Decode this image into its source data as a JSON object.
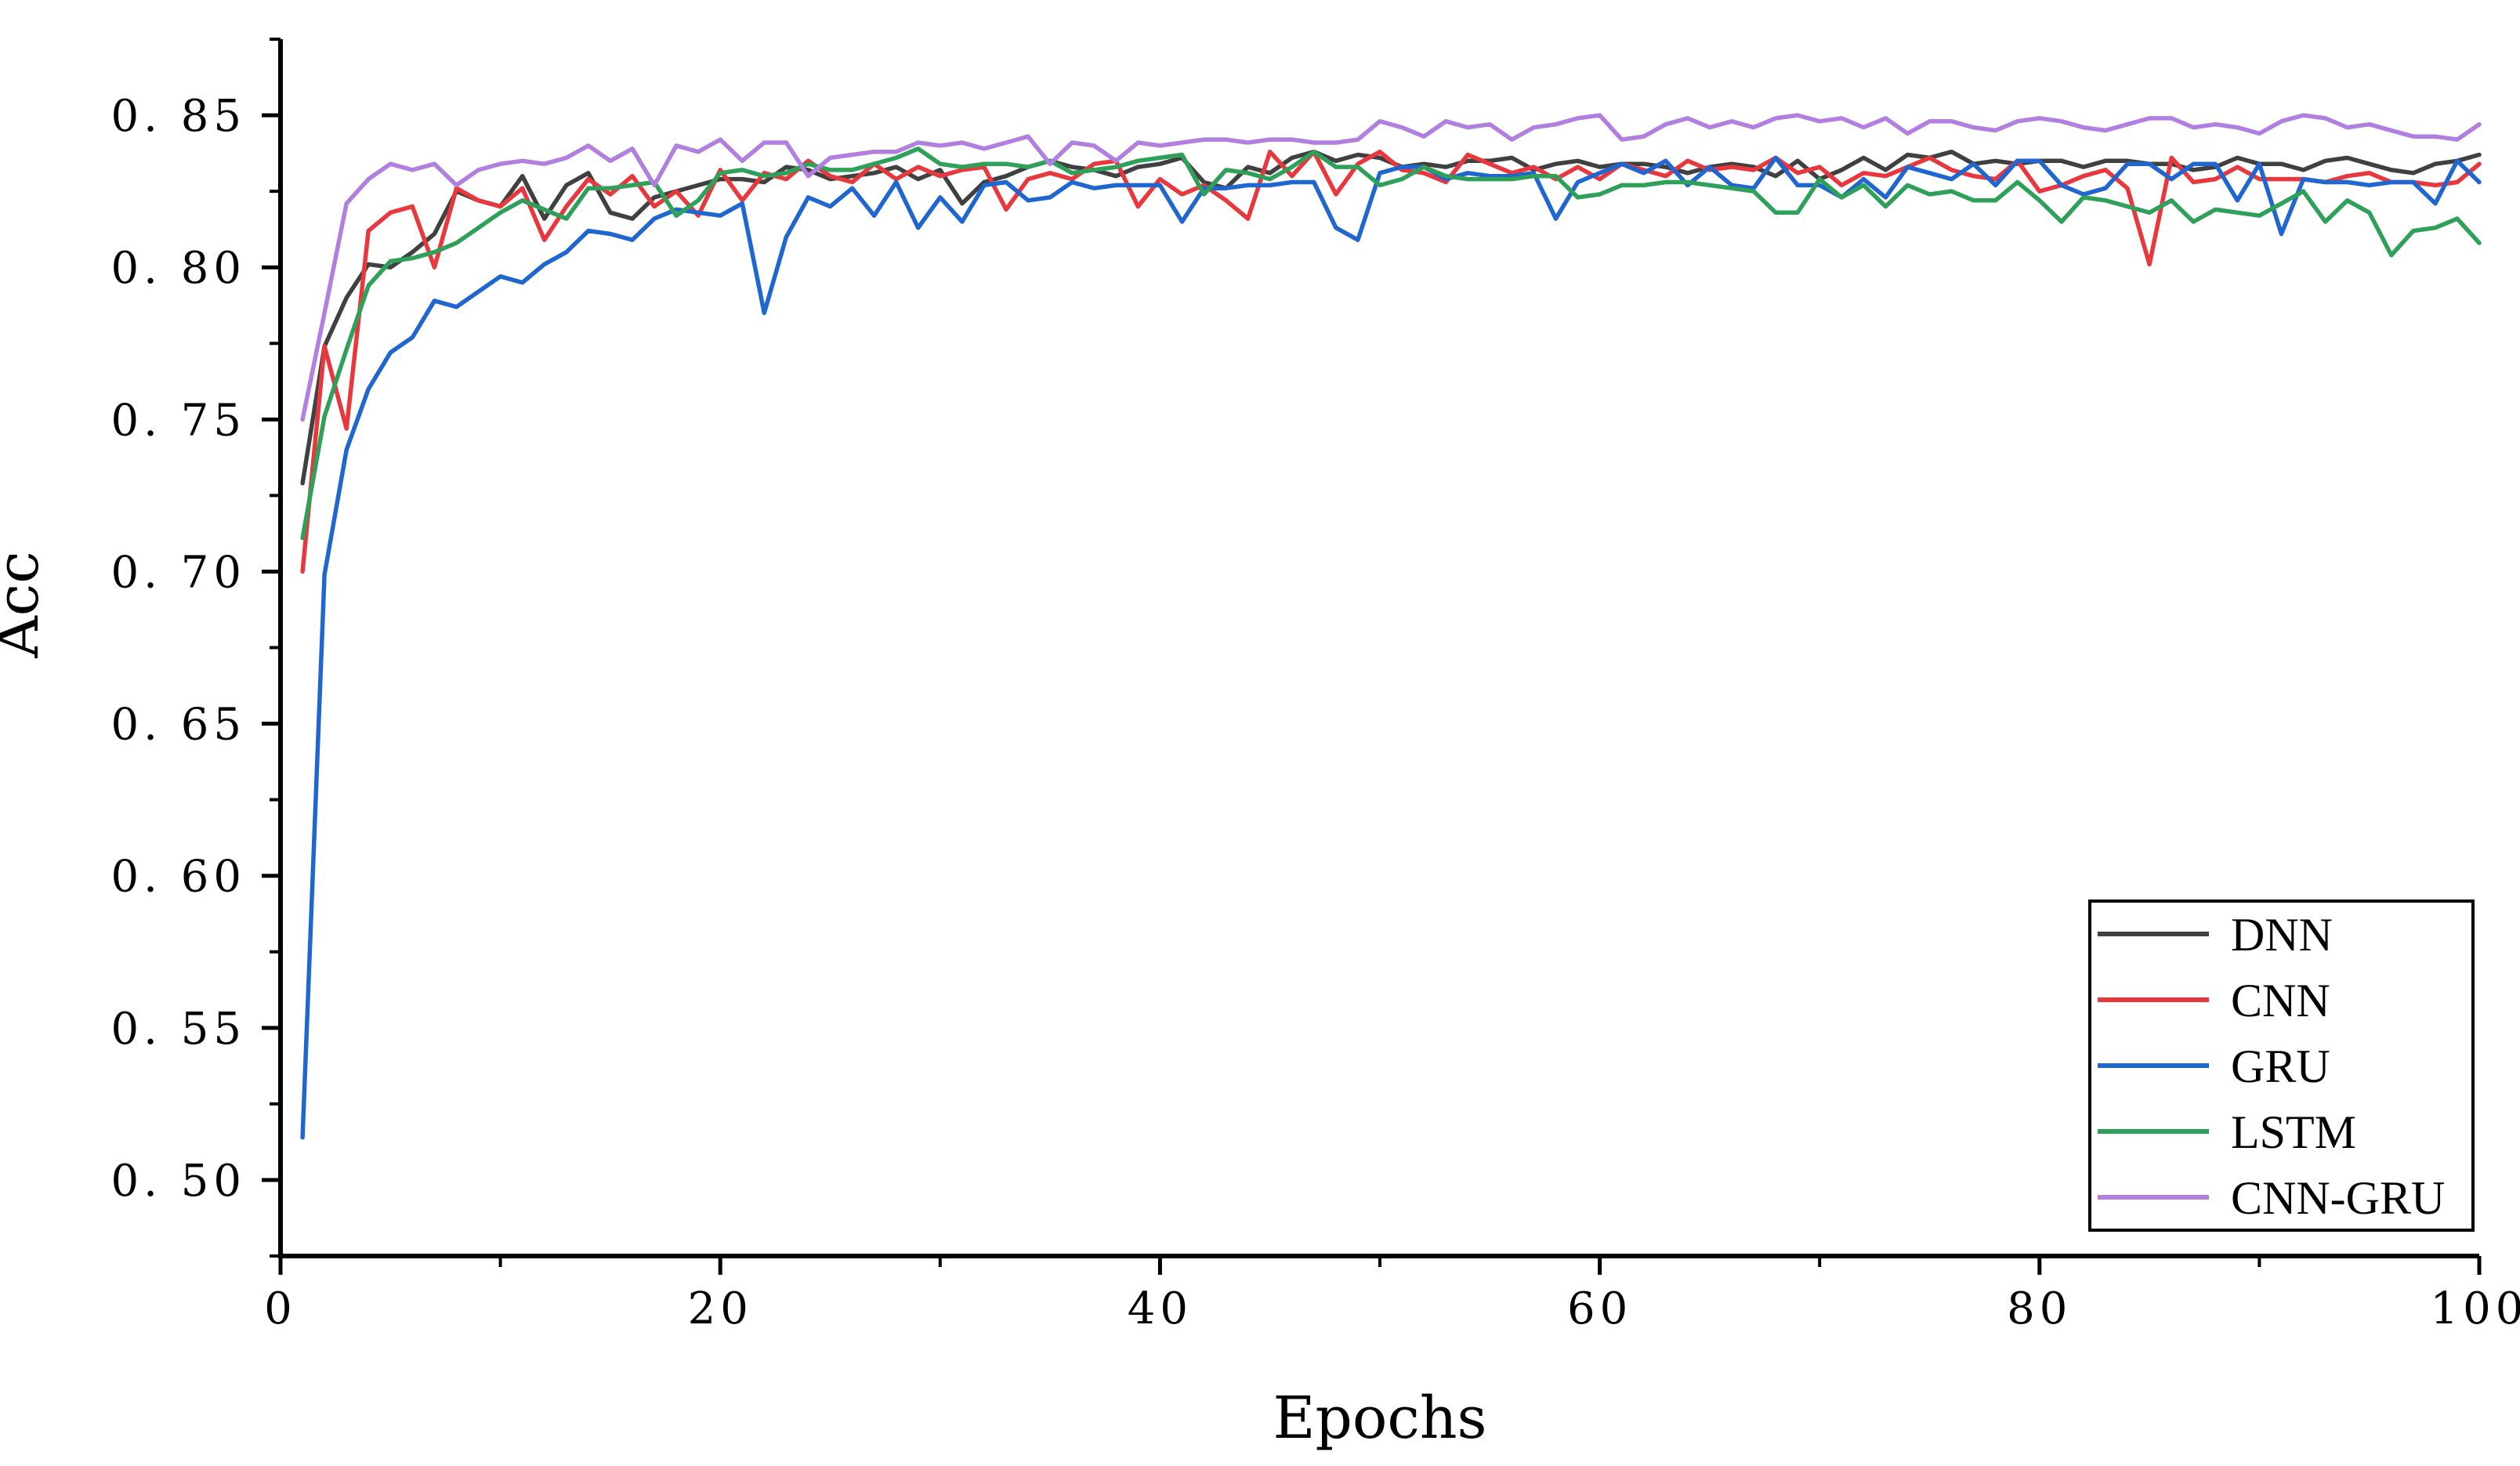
{
  "chart_data": {
    "type": "line",
    "xlabel": "Epochs",
    "ylabel": "Acc",
    "xlim": [
      0,
      100
    ],
    "ylim": [
      0.475,
      0.875
    ],
    "x_ticks": [
      "0",
      "20",
      "40",
      "60",
      "80",
      "100"
    ],
    "y_ticks": [
      "0. 50",
      "0. 55",
      "0. 60",
      "0. 65",
      "0. 70",
      "0. 75",
      "0. 80",
      "0. 85"
    ],
    "legend_position": "bottom-right",
    "x": [
      1,
      2,
      3,
      4,
      5,
      6,
      7,
      8,
      9,
      10,
      11,
      12,
      13,
      14,
      15,
      16,
      17,
      18,
      19,
      20,
      21,
      22,
      23,
      24,
      25,
      26,
      27,
      28,
      29,
      30,
      31,
      32,
      33,
      34,
      35,
      36,
      37,
      38,
      39,
      40,
      41,
      42,
      43,
      44,
      45,
      46,
      47,
      48,
      49,
      50,
      51,
      52,
      53,
      54,
      55,
      56,
      57,
      58,
      59,
      60,
      61,
      62,
      63,
      64,
      65,
      66,
      67,
      68,
      69,
      70,
      71,
      72,
      73,
      74,
      75,
      76,
      77,
      78,
      79,
      80,
      81,
      82,
      83,
      84,
      85,
      86,
      87,
      88,
      89,
      90,
      91,
      92,
      93,
      94,
      95,
      96,
      97,
      98,
      99,
      100
    ],
    "series": [
      {
        "name": "DNN",
        "color": "#404040",
        "values": [
          0.729,
          0.774,
          0.79,
          0.801,
          0.8,
          0.805,
          0.811,
          0.825,
          0.822,
          0.82,
          0.83,
          0.816,
          0.827,
          0.831,
          0.818,
          0.816,
          0.823,
          0.825,
          0.827,
          0.829,
          0.829,
          0.828,
          0.833,
          0.832,
          0.829,
          0.83,
          0.831,
          0.833,
          0.829,
          0.832,
          0.821,
          0.828,
          0.83,
          0.833,
          0.835,
          0.833,
          0.832,
          0.83,
          0.833,
          0.834,
          0.836,
          0.828,
          0.826,
          0.833,
          0.831,
          0.836,
          0.838,
          0.835,
          0.837,
          0.836,
          0.833,
          0.834,
          0.833,
          0.835,
          0.835,
          0.836,
          0.832,
          0.834,
          0.835,
          0.833,
          0.834,
          0.834,
          0.833,
          0.831,
          0.833,
          0.834,
          0.833,
          0.83,
          0.835,
          0.829,
          0.832,
          0.836,
          0.832,
          0.837,
          0.836,
          0.838,
          0.834,
          0.835,
          0.834,
          0.835,
          0.835,
          0.833,
          0.835,
          0.835,
          0.834,
          0.834,
          0.832,
          0.833,
          0.836,
          0.834,
          0.834,
          0.832,
          0.835,
          0.836,
          0.834,
          0.832,
          0.831,
          0.834,
          0.835,
          0.837
        ]
      },
      {
        "name": "CNN",
        "color": "#e8383d",
        "values": [
          0.7,
          0.774,
          0.747,
          0.812,
          0.818,
          0.82,
          0.8,
          0.826,
          0.822,
          0.82,
          0.826,
          0.809,
          0.82,
          0.829,
          0.824,
          0.83,
          0.82,
          0.825,
          0.817,
          0.832,
          0.822,
          0.831,
          0.829,
          0.835,
          0.83,
          0.828,
          0.834,
          0.829,
          0.833,
          0.83,
          0.832,
          0.833,
          0.819,
          0.829,
          0.831,
          0.829,
          0.834,
          0.835,
          0.82,
          0.829,
          0.824,
          0.827,
          0.822,
          0.816,
          0.838,
          0.83,
          0.838,
          0.824,
          0.834,
          0.838,
          0.832,
          0.831,
          0.828,
          0.837,
          0.834,
          0.831,
          0.833,
          0.829,
          0.833,
          0.829,
          0.834,
          0.832,
          0.83,
          0.835,
          0.832,
          0.833,
          0.832,
          0.836,
          0.831,
          0.833,
          0.827,
          0.831,
          0.83,
          0.833,
          0.836,
          0.832,
          0.83,
          0.829,
          0.835,
          0.825,
          0.827,
          0.83,
          0.832,
          0.826,
          0.801,
          0.836,
          0.828,
          0.829,
          0.833,
          0.829,
          0.829,
          0.829,
          0.828,
          0.83,
          0.831,
          0.828,
          0.828,
          0.827,
          0.828,
          0.834
        ]
      },
      {
        "name": "GRU",
        "color": "#1f66d1",
        "values": [
          0.514,
          0.699,
          0.74,
          0.76,
          0.772,
          0.777,
          0.789,
          0.787,
          0.792,
          0.797,
          0.795,
          0.801,
          0.805,
          0.812,
          0.811,
          0.809,
          0.816,
          0.819,
          0.818,
          0.817,
          0.821,
          0.785,
          0.81,
          0.823,
          0.82,
          0.826,
          0.817,
          0.828,
          0.813,
          0.823,
          0.815,
          0.827,
          0.828,
          0.822,
          0.823,
          0.828,
          0.826,
          0.827,
          0.827,
          0.827,
          0.815,
          0.826,
          0.826,
          0.827,
          0.827,
          0.828,
          0.828,
          0.813,
          0.809,
          0.831,
          0.833,
          0.833,
          0.829,
          0.831,
          0.83,
          0.83,
          0.831,
          0.816,
          0.828,
          0.831,
          0.834,
          0.831,
          0.835,
          0.827,
          0.833,
          0.827,
          0.826,
          0.836,
          0.827,
          0.827,
          0.823,
          0.829,
          0.823,
          0.833,
          0.831,
          0.829,
          0.834,
          0.827,
          0.835,
          0.835,
          0.827,
          0.824,
          0.826,
          0.834,
          0.834,
          0.829,
          0.834,
          0.834,
          0.822,
          0.834,
          0.811,
          0.829,
          0.828,
          0.828,
          0.827,
          0.828,
          0.828,
          0.821,
          0.835,
          0.828
        ]
      },
      {
        "name": "LSTM",
        "color": "#2ea05a",
        "values": [
          0.711,
          0.751,
          0.773,
          0.794,
          0.802,
          0.803,
          0.805,
          0.808,
          0.813,
          0.818,
          0.822,
          0.819,
          0.816,
          0.826,
          0.826,
          0.827,
          0.828,
          0.817,
          0.822,
          0.831,
          0.832,
          0.83,
          0.831,
          0.834,
          0.832,
          0.832,
          0.834,
          0.836,
          0.839,
          0.834,
          0.833,
          0.834,
          0.834,
          0.833,
          0.835,
          0.831,
          0.832,
          0.833,
          0.835,
          0.836,
          0.837,
          0.824,
          0.832,
          0.831,
          0.829,
          0.833,
          0.838,
          0.833,
          0.833,
          0.827,
          0.829,
          0.833,
          0.83,
          0.829,
          0.829,
          0.829,
          0.83,
          0.83,
          0.823,
          0.824,
          0.827,
          0.827,
          0.828,
          0.828,
          0.827,
          0.826,
          0.825,
          0.818,
          0.818,
          0.829,
          0.823,
          0.827,
          0.82,
          0.827,
          0.824,
          0.825,
          0.822,
          0.822,
          0.828,
          0.822,
          0.815,
          0.823,
          0.822,
          0.82,
          0.818,
          0.822,
          0.815,
          0.819,
          0.818,
          0.817,
          0.821,
          0.825,
          0.815,
          0.822,
          0.818,
          0.804,
          0.812,
          0.813,
          0.816,
          0.808
        ]
      },
      {
        "name": "CNN-GRU",
        "color": "#b07fe0",
        "values": [
          0.75,
          0.785,
          0.821,
          0.829,
          0.834,
          0.832,
          0.834,
          0.827,
          0.832,
          0.834,
          0.835,
          0.834,
          0.836,
          0.84,
          0.835,
          0.839,
          0.827,
          0.84,
          0.838,
          0.842,
          0.835,
          0.841,
          0.841,
          0.83,
          0.836,
          0.837,
          0.838,
          0.838,
          0.841,
          0.84,
          0.841,
          0.839,
          0.841,
          0.843,
          0.834,
          0.841,
          0.84,
          0.835,
          0.841,
          0.84,
          0.841,
          0.842,
          0.842,
          0.841,
          0.842,
          0.842,
          0.841,
          0.841,
          0.842,
          0.848,
          0.846,
          0.843,
          0.848,
          0.846,
          0.847,
          0.842,
          0.846,
          0.847,
          0.849,
          0.85,
          0.842,
          0.843,
          0.847,
          0.849,
          0.846,
          0.848,
          0.846,
          0.849,
          0.85,
          0.848,
          0.849,
          0.846,
          0.849,
          0.844,
          0.848,
          0.848,
          0.846,
          0.845,
          0.848,
          0.849,
          0.848,
          0.846,
          0.845,
          0.847,
          0.849,
          0.849,
          0.846,
          0.847,
          0.846,
          0.844,
          0.848,
          0.85,
          0.849,
          0.846,
          0.847,
          0.845,
          0.843,
          0.843,
          0.842,
          0.847
        ]
      }
    ]
  }
}
